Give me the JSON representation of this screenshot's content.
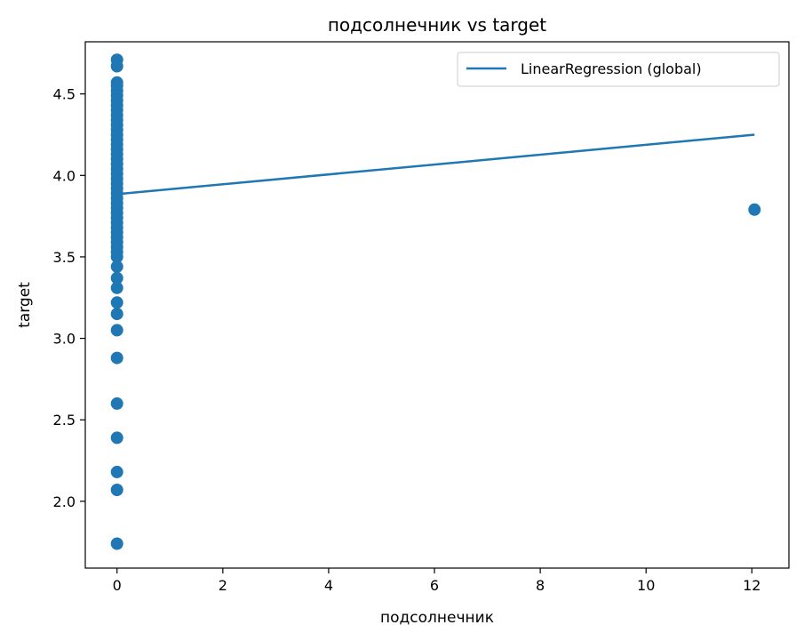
{
  "chart_data": {
    "type": "scatter",
    "title": "подсолнечник vs target",
    "xlabel": "подсолнечник",
    "ylabel": "target",
    "xlim": [
      -0.6,
      12.7
    ],
    "ylim": [
      1.59,
      4.82
    ],
    "x_ticks": [
      0,
      2,
      4,
      6,
      8,
      10,
      12
    ],
    "x_tick_labels": [
      "0",
      "2",
      "4",
      "6",
      "8",
      "10",
      "12"
    ],
    "y_ticks": [
      2.0,
      2.5,
      3.0,
      3.5,
      4.0,
      4.5
    ],
    "y_tick_labels": [
      "2.0",
      "2.5",
      "3.0",
      "3.5",
      "4.0",
      "4.5"
    ],
    "grid": false,
    "legend": {
      "position": "top-right",
      "entries": [
        "LinearRegression (global)"
      ]
    },
    "series": [
      {
        "kind": "scatter",
        "color": "#1f77b4",
        "points": [
          [
            0,
            4.71
          ],
          [
            0,
            4.67
          ],
          [
            0,
            4.57
          ],
          [
            0,
            4.55
          ],
          [
            0,
            4.52
          ],
          [
            0,
            4.49
          ],
          [
            0,
            4.46
          ],
          [
            0,
            4.43
          ],
          [
            0,
            4.4
          ],
          [
            0,
            4.37
          ],
          [
            0,
            4.34
          ],
          [
            0,
            4.31
          ],
          [
            0,
            4.28
          ],
          [
            0,
            4.25
          ],
          [
            0,
            4.22
          ],
          [
            0,
            4.19
          ],
          [
            0,
            4.16
          ],
          [
            0,
            4.13
          ],
          [
            0,
            4.1
          ],
          [
            0,
            4.07
          ],
          [
            0,
            4.04
          ],
          [
            0,
            4.01
          ],
          [
            0,
            3.98
          ],
          [
            0,
            3.95
          ],
          [
            0,
            3.92
          ],
          [
            0,
            3.89
          ],
          [
            0,
            3.86
          ],
          [
            0,
            3.83
          ],
          [
            0,
            3.8
          ],
          [
            0,
            3.77
          ],
          [
            0,
            3.74
          ],
          [
            0,
            3.71
          ],
          [
            0,
            3.68
          ],
          [
            0,
            3.65
          ],
          [
            0,
            3.62
          ],
          [
            0,
            3.59
          ],
          [
            0,
            3.56
          ],
          [
            0,
            3.53
          ],
          [
            0,
            3.5
          ],
          [
            0,
            3.44
          ],
          [
            0,
            3.37
          ],
          [
            0,
            3.31
          ],
          [
            0,
            3.22
          ],
          [
            0,
            3.15
          ],
          [
            0,
            3.05
          ],
          [
            0,
            2.88
          ],
          [
            0,
            2.6
          ],
          [
            0,
            2.39
          ],
          [
            0,
            2.18
          ],
          [
            0,
            2.07
          ],
          [
            0,
            1.74
          ],
          [
            12.05,
            3.79
          ]
        ]
      },
      {
        "kind": "line",
        "name": "LinearRegression (global)",
        "color": "#1f77b4",
        "x": [
          0,
          12.05
        ],
        "y": [
          3.885,
          4.25
        ]
      }
    ]
  }
}
